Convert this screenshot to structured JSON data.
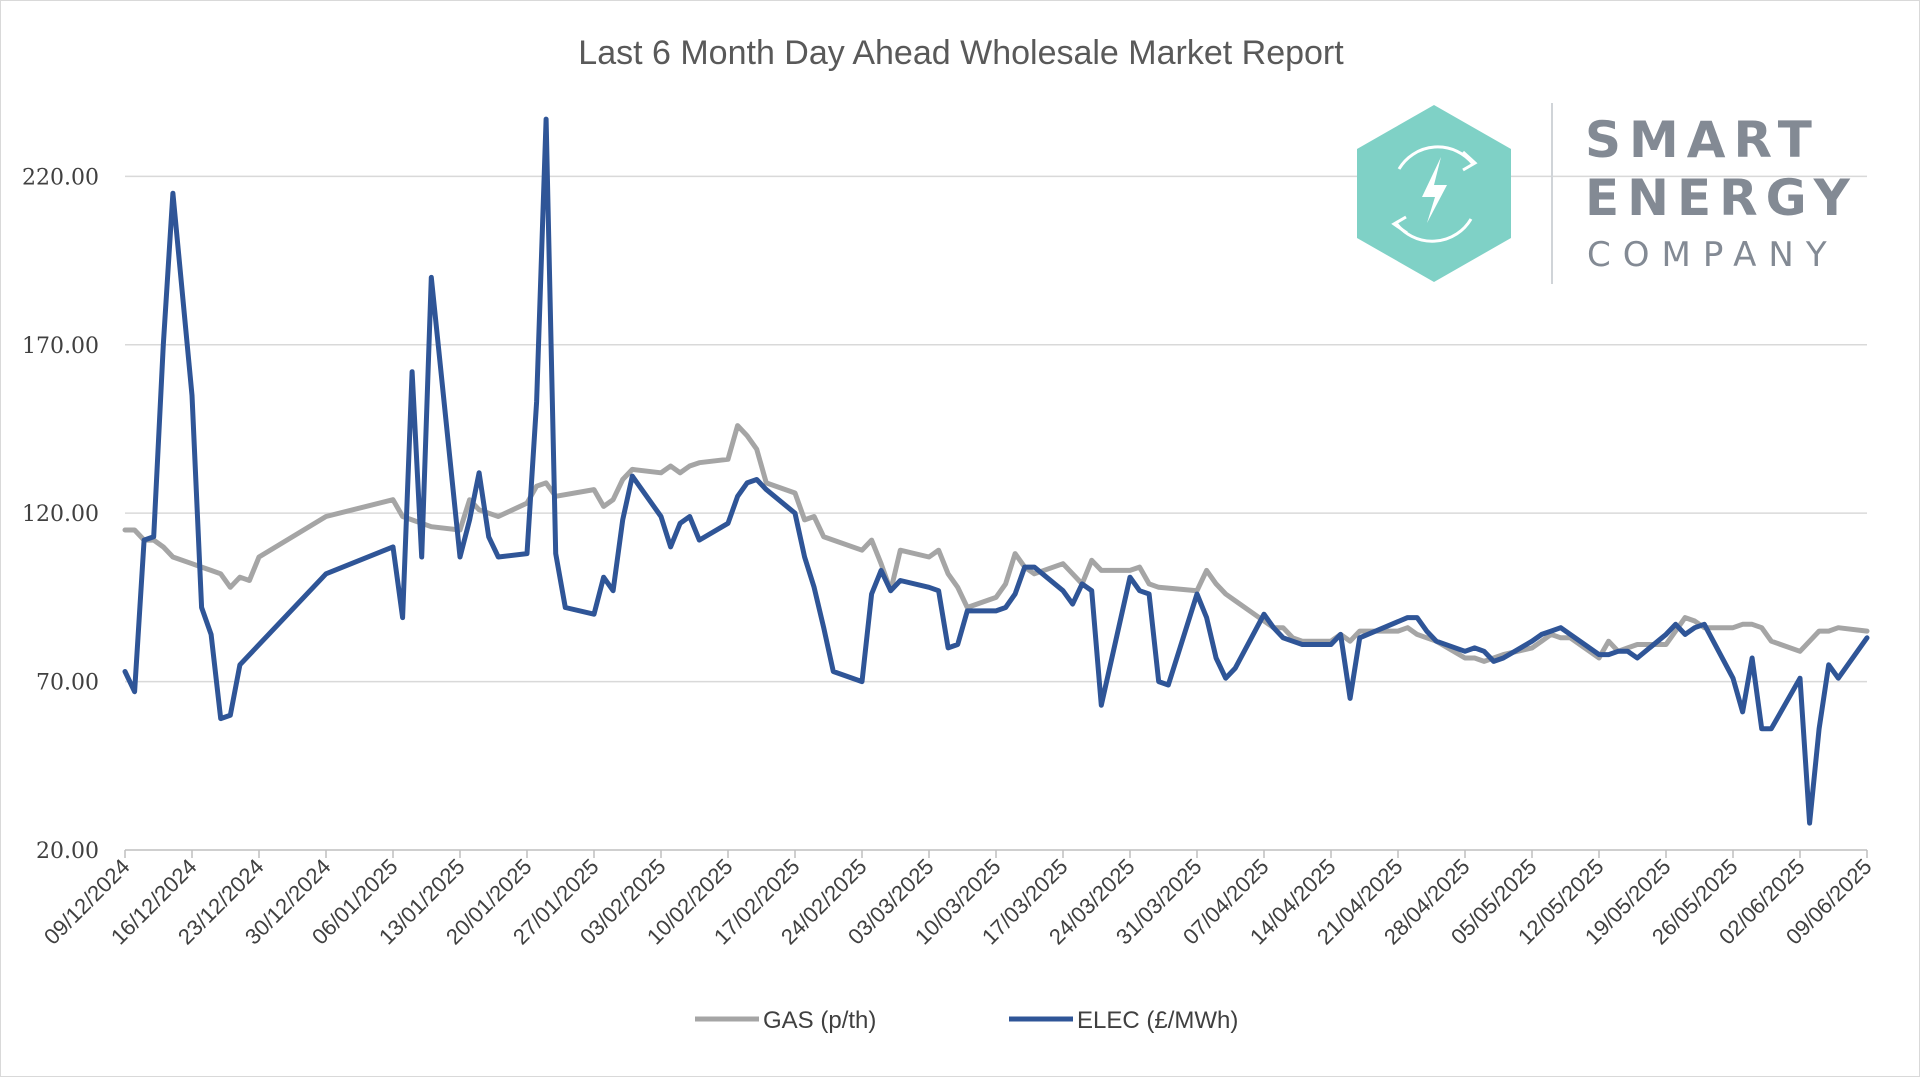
{
  "chart_data": {
    "type": "line",
    "title": "Last 6 Month Day Ahead Wholesale Market Report",
    "xlabel": "",
    "ylabel": "",
    "ylim": [
      20,
      240
    ],
    "yticks": [
      "20.00",
      "70.00",
      "120.00",
      "170.00",
      "220.00"
    ],
    "xlim": [
      "2024-12-09",
      "2025-06-09"
    ],
    "xticks": [
      "09/12/2024",
      "16/12/2024",
      "23/12/2024",
      "30/12/2024",
      "06/01/2025",
      "13/01/2025",
      "20/01/2025",
      "27/01/2025",
      "03/02/2025",
      "10/02/2025",
      "17/02/2025",
      "24/02/2025",
      "03/03/2025",
      "10/03/2025",
      "17/03/2025",
      "24/03/2025",
      "31/03/2025",
      "07/04/2025",
      "14/04/2025",
      "21/04/2025",
      "28/04/2025",
      "05/05/2025",
      "12/05/2025",
      "19/05/2025",
      "26/05/2025",
      "02/06/2025",
      "09/06/2025"
    ],
    "grid": true,
    "legend_position": "bottom",
    "series": [
      {
        "name": "GAS (p/th)",
        "color": "#a5a5a5",
        "points": [
          [
            "2024-12-09",
            115
          ],
          [
            "2024-12-10",
            115
          ],
          [
            "2024-12-11",
            112
          ],
          [
            "2024-12-12",
            112
          ],
          [
            "2024-12-13",
            110
          ],
          [
            "2024-12-14",
            107
          ],
          [
            "2024-12-16",
            105
          ],
          [
            "2024-12-17",
            104
          ],
          [
            "2024-12-18",
            103
          ],
          [
            "2024-12-19",
            102
          ],
          [
            "2024-12-20",
            98
          ],
          [
            "2024-12-21",
            101
          ],
          [
            "2024-12-22",
            100
          ],
          [
            "2024-12-23",
            107
          ],
          [
            "2024-12-30",
            119
          ],
          [
            "2025-01-06",
            124
          ],
          [
            "2025-01-07",
            119
          ],
          [
            "2025-01-08",
            118
          ],
          [
            "2025-01-09",
            117
          ],
          [
            "2025-01-10",
            116
          ],
          [
            "2025-01-13",
            115
          ],
          [
            "2025-01-14",
            124
          ],
          [
            "2025-01-15",
            121
          ],
          [
            "2025-01-16",
            120
          ],
          [
            "2025-01-17",
            119
          ],
          [
            "2025-01-20",
            123
          ],
          [
            "2025-01-21",
            128
          ],
          [
            "2025-01-22",
            129
          ],
          [
            "2025-01-23",
            125
          ],
          [
            "2025-01-27",
            127
          ],
          [
            "2025-01-28",
            122
          ],
          [
            "2025-01-29",
            124
          ],
          [
            "2025-01-30",
            130
          ],
          [
            "2025-01-31",
            133
          ],
          [
            "2025-02-03",
            132
          ],
          [
            "2025-02-04",
            134
          ],
          [
            "2025-02-05",
            132
          ],
          [
            "2025-02-06",
            134
          ],
          [
            "2025-02-07",
            135
          ],
          [
            "2025-02-10",
            136
          ],
          [
            "2025-02-11",
            146
          ],
          [
            "2025-02-12",
            143
          ],
          [
            "2025-02-13",
            139
          ],
          [
            "2025-02-14",
            129
          ],
          [
            "2025-02-17",
            126
          ],
          [
            "2025-02-18",
            118
          ],
          [
            "2025-02-19",
            119
          ],
          [
            "2025-02-20",
            113
          ],
          [
            "2025-02-21",
            112
          ],
          [
            "2025-02-24",
            109
          ],
          [
            "2025-02-25",
            112
          ],
          [
            "2025-02-26",
            105
          ],
          [
            "2025-02-27",
            97
          ],
          [
            "2025-02-28",
            109
          ],
          [
            "2025-03-03",
            107
          ],
          [
            "2025-03-04",
            109
          ],
          [
            "2025-03-05",
            102
          ],
          [
            "2025-03-06",
            98
          ],
          [
            "2025-03-07",
            92
          ],
          [
            "2025-03-10",
            95
          ],
          [
            "2025-03-11",
            99
          ],
          [
            "2025-03-12",
            108
          ],
          [
            "2025-03-13",
            104
          ],
          [
            "2025-03-14",
            102
          ],
          [
            "2025-03-17",
            105
          ],
          [
            "2025-03-18",
            102
          ],
          [
            "2025-03-19",
            99
          ],
          [
            "2025-03-20",
            106
          ],
          [
            "2025-03-21",
            103
          ],
          [
            "2025-03-24",
            103
          ],
          [
            "2025-03-25",
            104
          ],
          [
            "2025-03-26",
            99
          ],
          [
            "2025-03-27",
            98
          ],
          [
            "2025-03-31",
            97
          ],
          [
            "2025-04-01",
            103
          ],
          [
            "2025-04-02",
            99
          ],
          [
            "2025-04-03",
            96
          ],
          [
            "2025-04-04",
            94
          ],
          [
            "2025-04-07",
            88
          ],
          [
            "2025-04-08",
            86
          ],
          [
            "2025-04-09",
            86
          ],
          [
            "2025-04-10",
            83
          ],
          [
            "2025-04-11",
            82
          ],
          [
            "2025-04-14",
            82
          ],
          [
            "2025-04-15",
            84
          ],
          [
            "2025-04-16",
            82
          ],
          [
            "2025-04-17",
            85
          ],
          [
            "2025-04-18",
            85
          ],
          [
            "2025-04-21",
            85
          ],
          [
            "2025-04-22",
            86
          ],
          [
            "2025-04-23",
            84
          ],
          [
            "2025-04-24",
            83
          ],
          [
            "2025-04-25",
            82
          ],
          [
            "2025-04-28",
            77
          ],
          [
            "2025-04-29",
            77
          ],
          [
            "2025-04-30",
            76
          ],
          [
            "2025-05-01",
            77
          ],
          [
            "2025-05-02",
            78
          ],
          [
            "2025-05-05",
            80
          ],
          [
            "2025-05-06",
            82
          ],
          [
            "2025-05-07",
            84
          ],
          [
            "2025-05-08",
            83
          ],
          [
            "2025-05-09",
            83
          ],
          [
            "2025-05-12",
            77
          ],
          [
            "2025-05-13",
            82
          ],
          [
            "2025-05-14",
            79
          ],
          [
            "2025-05-15",
            80
          ],
          [
            "2025-05-16",
            81
          ],
          [
            "2025-05-19",
            81
          ],
          [
            "2025-05-20",
            85
          ],
          [
            "2025-05-21",
            89
          ],
          [
            "2025-05-22",
            88
          ],
          [
            "2025-05-23",
            86
          ],
          [
            "2025-05-26",
            86
          ],
          [
            "2025-05-27",
            87
          ],
          [
            "2025-05-28",
            87
          ],
          [
            "2025-05-29",
            86
          ],
          [
            "2025-05-30",
            82
          ],
          [
            "2025-06-02",
            79
          ],
          [
            "2025-06-03",
            82
          ],
          [
            "2025-06-04",
            85
          ],
          [
            "2025-06-05",
            85
          ],
          [
            "2025-06-06",
            86
          ],
          [
            "2025-06-09",
            85
          ]
        ]
      },
      {
        "name": "ELEC (£/MWh)",
        "color": "#2f5597",
        "points": [
          [
            "2024-12-09",
            73
          ],
          [
            "2024-12-10",
            67
          ],
          [
            "2024-12-11",
            112
          ],
          [
            "2024-12-12",
            113
          ],
          [
            "2024-12-13",
            170
          ],
          [
            "2024-12-14",
            215
          ],
          [
            "2024-12-16",
            155
          ],
          [
            "2024-12-17",
            92
          ],
          [
            "2024-12-18",
            84
          ],
          [
            "2024-12-19",
            59
          ],
          [
            "2024-12-20",
            60
          ],
          [
            "2024-12-21",
            75
          ],
          [
            "2024-12-30",
            102
          ],
          [
            "2025-01-06",
            110
          ],
          [
            "2025-01-07",
            89
          ],
          [
            "2025-01-08",
            162
          ],
          [
            "2025-01-09",
            107
          ],
          [
            "2025-01-10",
            190
          ],
          [
            "2025-01-13",
            107
          ],
          [
            "2025-01-14",
            118
          ],
          [
            "2025-01-15",
            132
          ],
          [
            "2025-01-16",
            113
          ],
          [
            "2025-01-17",
            107
          ],
          [
            "2025-01-20",
            108
          ],
          [
            "2025-01-21",
            153
          ],
          [
            "2025-01-22",
            237
          ],
          [
            "2025-01-23",
            108
          ],
          [
            "2025-01-24",
            92
          ],
          [
            "2025-01-27",
            90
          ],
          [
            "2025-01-28",
            101
          ],
          [
            "2025-01-29",
            97
          ],
          [
            "2025-01-30",
            118
          ],
          [
            "2025-01-31",
            131
          ],
          [
            "2025-02-03",
            119
          ],
          [
            "2025-02-04",
            110
          ],
          [
            "2025-02-05",
            117
          ],
          [
            "2025-02-06",
            119
          ],
          [
            "2025-02-07",
            112
          ],
          [
            "2025-02-10",
            117
          ],
          [
            "2025-02-11",
            125
          ],
          [
            "2025-02-12",
            129
          ],
          [
            "2025-02-13",
            130
          ],
          [
            "2025-02-14",
            127
          ],
          [
            "2025-02-17",
            120
          ],
          [
            "2025-02-18",
            107
          ],
          [
            "2025-02-19",
            98
          ],
          [
            "2025-02-20",
            86
          ],
          [
            "2025-02-21",
            73
          ],
          [
            "2025-02-24",
            70
          ],
          [
            "2025-02-25",
            96
          ],
          [
            "2025-02-26",
            103
          ],
          [
            "2025-02-27",
            97
          ],
          [
            "2025-02-28",
            100
          ],
          [
            "2025-03-03",
            98
          ],
          [
            "2025-03-04",
            97
          ],
          [
            "2025-03-05",
            80
          ],
          [
            "2025-03-06",
            81
          ],
          [
            "2025-03-07",
            91
          ],
          [
            "2025-03-10",
            91
          ],
          [
            "2025-03-11",
            92
          ],
          [
            "2025-03-12",
            96
          ],
          [
            "2025-03-13",
            104
          ],
          [
            "2025-03-14",
            104
          ],
          [
            "2025-03-17",
            97
          ],
          [
            "2025-03-18",
            93
          ],
          [
            "2025-03-19",
            99
          ],
          [
            "2025-03-20",
            97
          ],
          [
            "2025-03-21",
            63
          ],
          [
            "2025-03-24",
            101
          ],
          [
            "2025-03-25",
            97
          ],
          [
            "2025-03-26",
            96
          ],
          [
            "2025-03-27",
            70
          ],
          [
            "2025-03-28",
            69
          ],
          [
            "2025-03-31",
            96
          ],
          [
            "2025-04-01",
            89
          ],
          [
            "2025-04-02",
            77
          ],
          [
            "2025-04-03",
            71
          ],
          [
            "2025-04-04",
            74
          ],
          [
            "2025-04-07",
            90
          ],
          [
            "2025-04-08",
            86
          ],
          [
            "2025-04-09",
            83
          ],
          [
            "2025-04-10",
            82
          ],
          [
            "2025-04-11",
            81
          ],
          [
            "2025-04-14",
            81
          ],
          [
            "2025-04-15",
            84
          ],
          [
            "2025-04-16",
            65
          ],
          [
            "2025-04-17",
            83
          ],
          [
            "2025-04-22",
            89
          ],
          [
            "2025-04-23",
            89
          ],
          [
            "2025-04-24",
            85
          ],
          [
            "2025-04-25",
            82
          ],
          [
            "2025-04-28",
            79
          ],
          [
            "2025-04-29",
            80
          ],
          [
            "2025-04-30",
            79
          ],
          [
            "2025-05-01",
            76
          ],
          [
            "2025-05-02",
            77
          ],
          [
            "2025-05-05",
            82
          ],
          [
            "2025-05-06",
            84
          ],
          [
            "2025-05-07",
            85
          ],
          [
            "2025-05-08",
            86
          ],
          [
            "2025-05-09",
            84
          ],
          [
            "2025-05-12",
            78
          ],
          [
            "2025-05-13",
            78
          ],
          [
            "2025-05-14",
            79
          ],
          [
            "2025-05-15",
            79
          ],
          [
            "2025-05-16",
            77
          ],
          [
            "2025-05-19",
            84
          ],
          [
            "2025-05-20",
            87
          ],
          [
            "2025-05-21",
            84
          ],
          [
            "2025-05-22",
            86
          ],
          [
            "2025-05-23",
            87
          ],
          [
            "2025-05-26",
            71
          ],
          [
            "2025-05-27",
            61
          ],
          [
            "2025-05-28",
            77
          ],
          [
            "2025-05-29",
            56
          ],
          [
            "2025-05-30",
            56
          ],
          [
            "2025-06-02",
            71
          ],
          [
            "2025-06-03",
            28
          ],
          [
            "2025-06-04",
            56
          ],
          [
            "2025-06-05",
            75
          ],
          [
            "2025-06-06",
            71
          ],
          [
            "2025-06-09",
            83
          ]
        ]
      }
    ]
  },
  "logo": {
    "line1": "SMART",
    "line2": "ENERGY",
    "line3": "COMPANY",
    "hex_color": "#7fd1c6",
    "text_color": "#838a94",
    "icon": "lightning-refresh-icon"
  }
}
